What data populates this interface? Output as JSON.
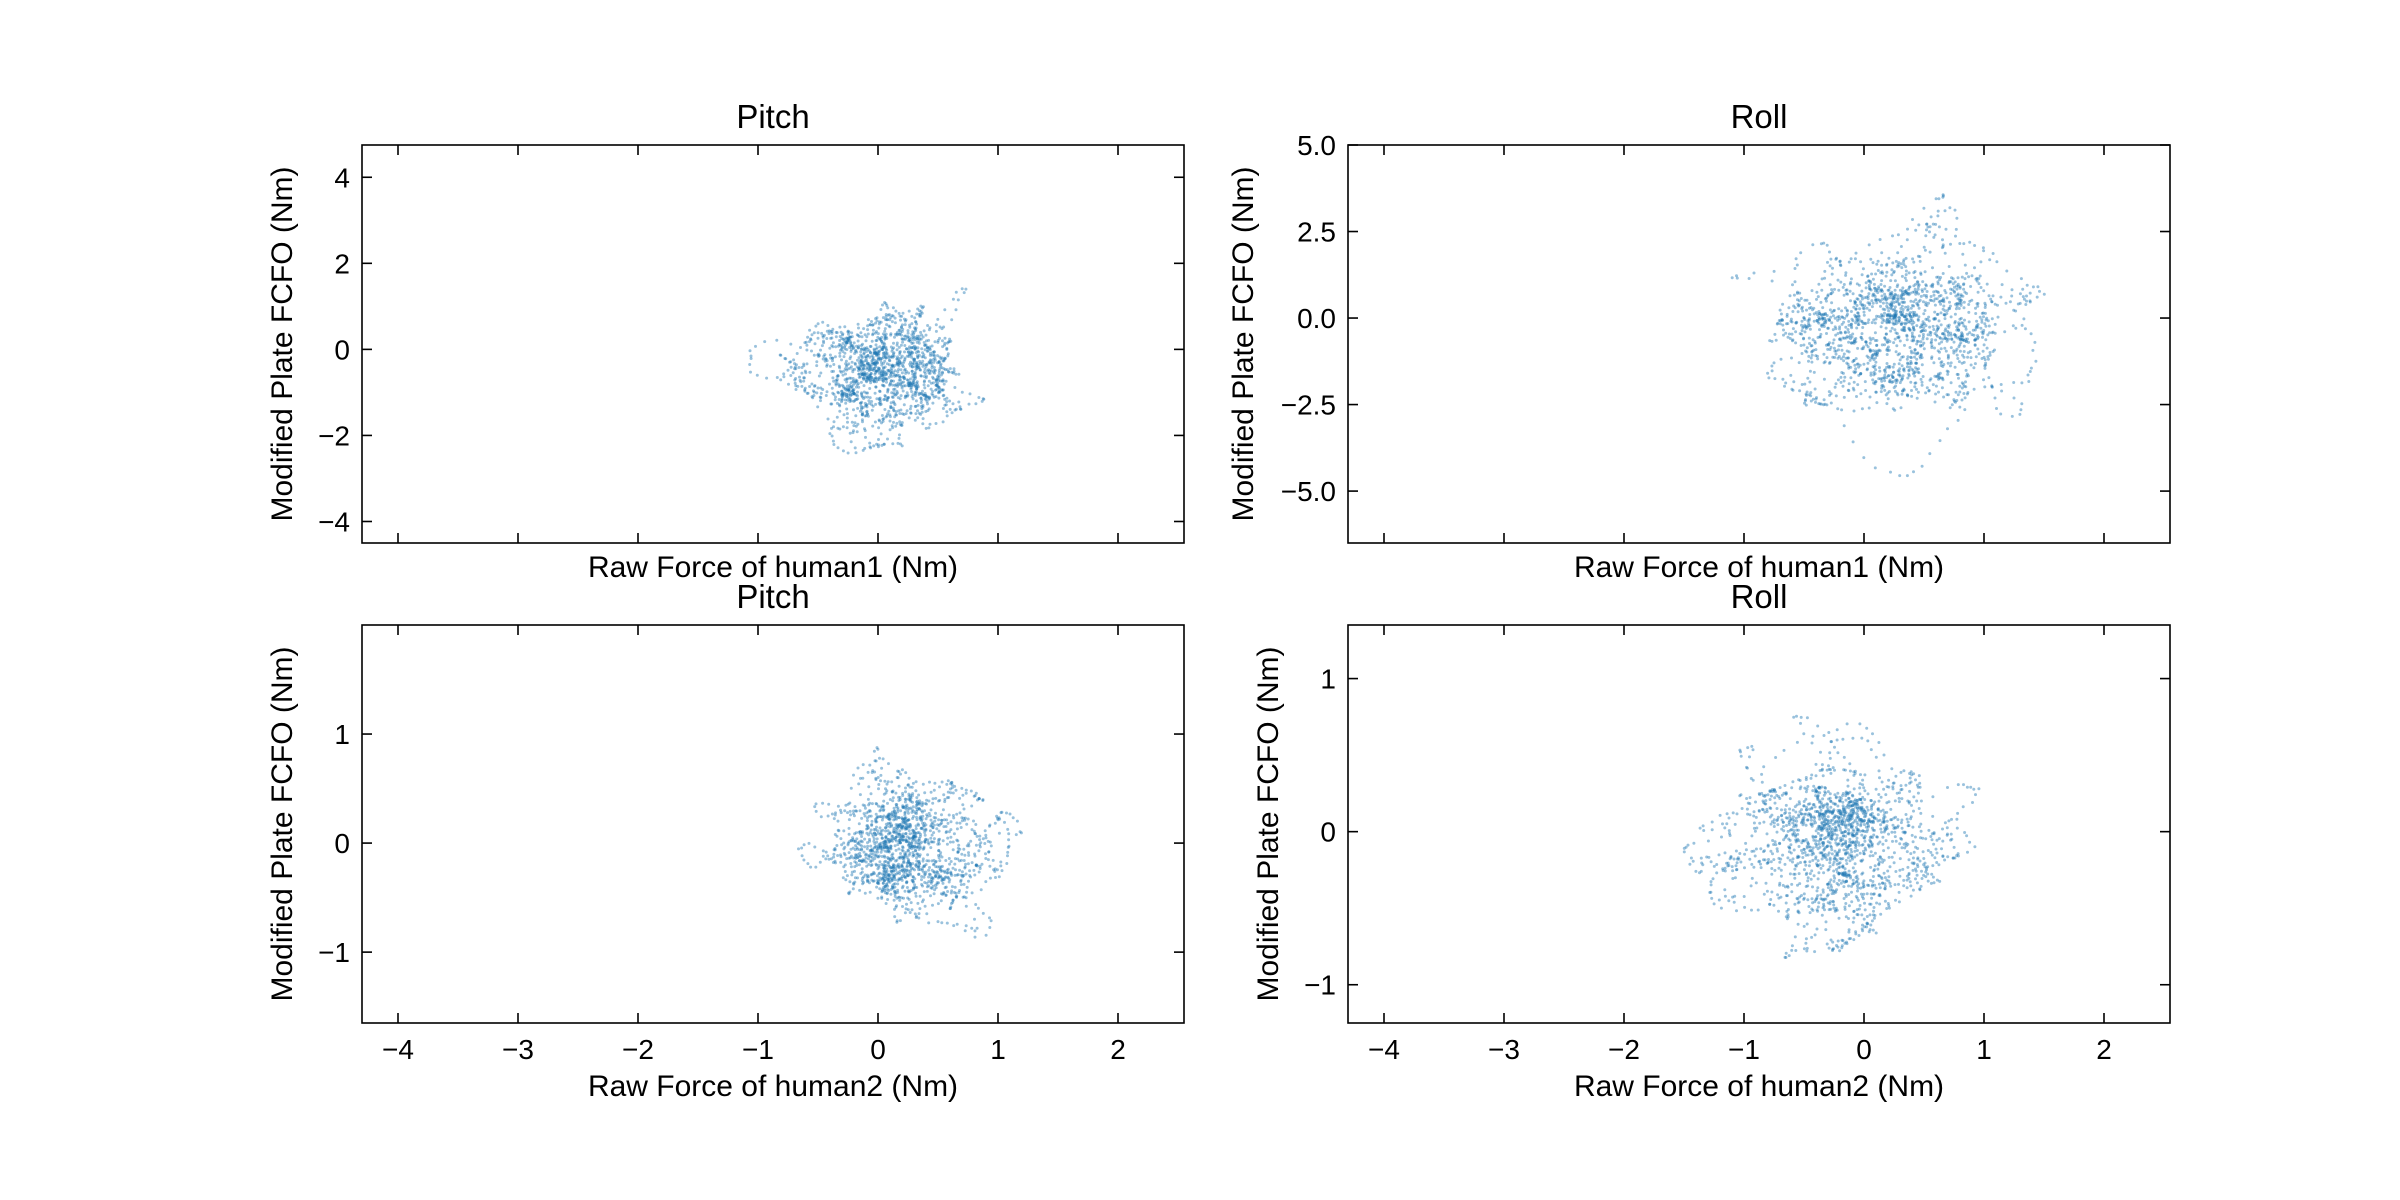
{
  "figure": {
    "background": "#ffffff",
    "point_color": "#1f77b4"
  },
  "chart_data": [
    {
      "type": "scatter",
      "title": "Pitch",
      "xlabel": "Raw Force of human1 (Nm)",
      "ylabel": "Modified Plate FCFO (Nm)",
      "xlim": [
        -4.3,
        2.55
      ],
      "ylim": [
        -4.5,
        4.75
      ],
      "xticks": [
        -4,
        -3,
        -2,
        -1,
        0,
        1,
        2
      ],
      "xticklabels_shown": false,
      "yticks": [
        -4,
        -2,
        0,
        2,
        4
      ],
      "yticklabels": [
        "−4",
        "−2",
        "0",
        "2",
        "4"
      ],
      "grid": false,
      "legend": "none",
      "series": [
        {
          "color": "#1f77b4",
          "distribution": {
            "center": [
              0.0,
              -0.4
            ],
            "spread": [
              0.55,
              1.2
            ],
            "x_range": [
              -1.95,
              2.05
            ],
            "y_range": [
              -4.4,
              4.7
            ],
            "count": 1500,
            "seed": 11
          }
        }
      ]
    },
    {
      "type": "scatter",
      "title": "Roll",
      "xlabel": "Raw Force of human1 (Nm)",
      "ylabel": "Modified Plate FCFO (Nm)",
      "xlim": [
        -4.3,
        2.55
      ],
      "ylim": [
        -6.5,
        5.0
      ],
      "xticks": [
        -4,
        -3,
        -2,
        -1,
        0,
        1,
        2
      ],
      "xticklabels_shown": false,
      "yticks": [
        -5.0,
        -2.5,
        0.0,
        2.5,
        5.0
      ],
      "yticklabels": [
        "−5.0",
        "−2.5",
        "0.0",
        "2.5",
        "5.0"
      ],
      "grid": false,
      "legend": "none",
      "series": [
        {
          "color": "#1f77b4",
          "distribution": {
            "center": [
              0.2,
              -0.4
            ],
            "spread": [
              0.75,
              1.9
            ],
            "x_range": [
              -2.3,
              2.5
            ],
            "y_range": [
              -6.5,
              5.0
            ],
            "count": 1700,
            "seed": 23
          }
        }
      ]
    },
    {
      "type": "scatter",
      "title": "Pitch",
      "xlabel": "Raw Force of human2 (Nm)",
      "ylabel": "Modified Plate FCFO (Nm)",
      "xlim": [
        -4.3,
        2.55
      ],
      "ylim": [
        -1.65,
        2.0
      ],
      "xticks": [
        -4,
        -3,
        -2,
        -1,
        0,
        1,
        2
      ],
      "xticklabels": [
        "−4",
        "−3",
        "−2",
        "−1",
        "0",
        "1",
        "2"
      ],
      "yticks": [
        -1,
        0,
        1
      ],
      "yticklabels": [
        "−1",
        "0",
        "1"
      ],
      "grid": false,
      "legend": "none",
      "series": [
        {
          "color": "#1f77b4",
          "distribution": {
            "center": [
              0.25,
              0.0
            ],
            "spread": [
              0.5,
              0.6
            ],
            "x_range": [
              -1.4,
              1.8
            ],
            "y_range": [
              -1.65,
              1.95
            ],
            "count": 1500,
            "seed": 37
          }
        }
      ]
    },
    {
      "type": "scatter",
      "title": "Roll",
      "xlabel": "Raw Force of human2 (Nm)",
      "ylabel": "Modified Plate FCFO (Nm)",
      "xlim": [
        -4.3,
        2.55
      ],
      "ylim": [
        -1.25,
        1.35
      ],
      "xticks": [
        -4,
        -3,
        -2,
        -1,
        0,
        1,
        2
      ],
      "xticklabels": [
        "−4",
        "−3",
        "−2",
        "−1",
        "0",
        "1",
        "2"
      ],
      "yticks": [
        -1,
        0,
        1
      ],
      "yticklabels": [
        "−1",
        "0",
        "1"
      ],
      "grid": false,
      "legend": "none",
      "series": [
        {
          "color": "#1f77b4",
          "distribution": {
            "center": [
              -0.2,
              -0.05
            ],
            "spread": [
              0.7,
              0.45
            ],
            "x_range": [
              -2.9,
              2.5
            ],
            "y_range": [
              -1.25,
              1.35
            ],
            "count": 1700,
            "seed": 53
          }
        }
      ]
    }
  ]
}
